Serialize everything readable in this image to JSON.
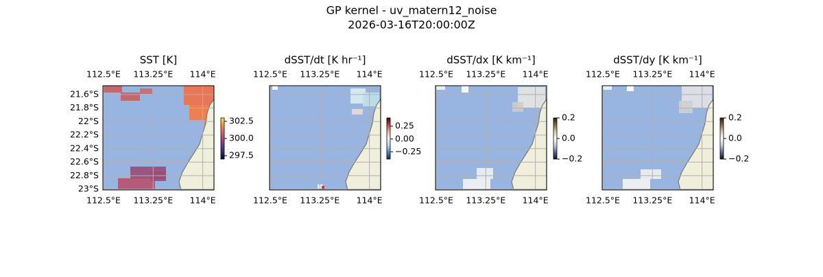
{
  "title": "GP kernel - uv_matern12_noise",
  "subtitle": "2026-03-16T20:00:00Z",
  "xlim": [
    112.49,
    114.17
  ],
  "ylim": [
    -21.47,
    -23.01
  ],
  "lon_ticks": [
    {
      "value": 112.5,
      "label": "112.5°E"
    },
    {
      "value": 113.25,
      "label": "113.25°E"
    },
    {
      "value": 114,
      "label": "114°E"
    }
  ],
  "lat_ticks": [
    {
      "value": -21.6,
      "label": "21.6°S"
    },
    {
      "value": -21.8,
      "label": "21.8°S"
    },
    {
      "value": -22,
      "label": "22°S"
    },
    {
      "value": -22.2,
      "label": "22.2°S"
    },
    {
      "value": -22.4,
      "label": "22.4°S"
    },
    {
      "value": -22.6,
      "label": "22.6°S"
    },
    {
      "value": -22.8,
      "label": "22.8°S"
    },
    {
      "value": -23,
      "label": "23°S"
    }
  ],
  "ocean_color": "#98b4e0",
  "land_color": "#efefdb",
  "grid_color": "#b0b0b0",
  "panels": [
    {
      "title": "SST [K]",
      "lat_labels": true,
      "colorbar": {
        "lim": [
          297,
          303
        ],
        "ticks": [
          302.5,
          {
            "value": 300,
            "label": "300.0"
          },
          297.5
        ],
        "cmap": [
          "#04082a",
          "#3a2f7a",
          "#8a3f8a",
          "#cf5a6a",
          "#f58a3a",
          "#f9e85a"
        ]
      }
    },
    {
      "title": "dSST/dt [K hr⁻¹]",
      "lat_labels": false,
      "colorbar": {
        "lim": [
          -0.39,
          0.41
        ],
        "ticks": [
          0.25,
          {
            "value": 0,
            "label": "0.00"
          },
          {
            "value": -0.25,
            "label": "−0.25"
          }
        ],
        "cmap": [
          "#172a5a",
          "#4a8ac0",
          "#b5dbe8",
          "#f5f5f5",
          "#f0b8a0",
          "#c44040",
          "#3c0912"
        ]
      }
    },
    {
      "title": "dSST/dx [K km⁻¹]",
      "lat_labels": false,
      "colorbar": {
        "lim": [
          -0.2,
          0.2
        ],
        "ticks": [
          0.2,
          {
            "value": 0,
            "label": "0.0"
          },
          {
            "value": -0.2,
            "label": "−0.2"
          }
        ],
        "cmap": [
          "#0a0f2a",
          "#5a6a8a",
          "#c8ccd4",
          "#ffffff",
          "#d8cab0",
          "#8a6a40",
          "#2a1a08"
        ]
      }
    },
    {
      "title": "dSST/dy [K km⁻¹]",
      "lat_labels": false,
      "colorbar": {
        "lim": [
          -0.2,
          0.2
        ],
        "ticks": [
          0.2,
          {
            "value": 0,
            "label": "0.0"
          },
          {
            "value": -0.2,
            "label": "−0.2"
          }
        ],
        "cmap": [
          "#0a0f2a",
          "#5a6a8a",
          "#c8ccd4",
          "#ffffff",
          "#d8cab0",
          "#8a6a40",
          "#2a1a08"
        ]
      }
    }
  ]
}
